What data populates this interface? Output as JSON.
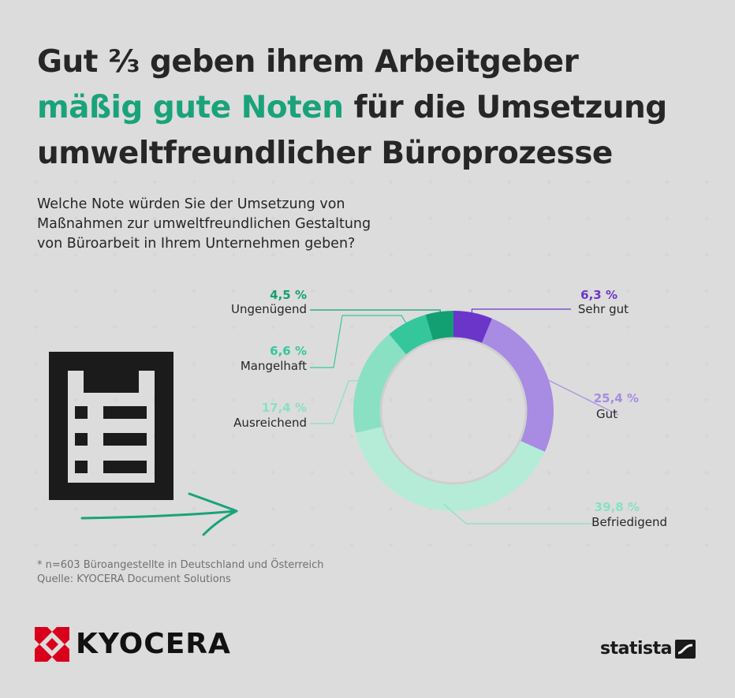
{
  "title": {
    "line1": "Gut ⅔ geben ihrem Arbeitgeber",
    "line2_highlight": "mäßig gute Noten",
    "line2_rest": " für die Umsetzung",
    "line3": "umweltfreundlicher Büroprozesse"
  },
  "subtitle": {
    "line1": "Welche Note würden Sie der Umsetzung von",
    "line2": "Maßnahmen zur umweltfreundlichen Gestaltung",
    "line3": "von Büroarbeit in Ihrem Unternehmen geben?"
  },
  "chart_data": {
    "type": "pie",
    "donut": true,
    "slices": [
      {
        "label": "Sehr gut",
        "value": 6.3,
        "value_label": "6,3 %",
        "color": "#6b35c9"
      },
      {
        "label": "Gut",
        "value": 25.4,
        "value_label": "25,4 %",
        "color": "#a88be3"
      },
      {
        "label": "Befriedigend",
        "value": 39.8,
        "value_label": "39,8 %",
        "color": "#b4ecd8"
      },
      {
        "label": "Ausreichend",
        "value": 17.4,
        "value_label": "17,4 %",
        "color": "#8ae0c2"
      },
      {
        "label": "Mangelhaft",
        "value": 6.6,
        "value_label": "6,6 %",
        "color": "#35c79c"
      },
      {
        "label": "Ungenügend",
        "value": 4.5,
        "value_label": "4,5 %",
        "color": "#12a072"
      }
    ],
    "label_colors": {
      "Sehr gut": "#6b35c9",
      "Gut": "#a88be3",
      "Befriedigend": "#8ae0c2",
      "Ausreichend": "#8ae0c2",
      "Mangelhaft": "#35c79c",
      "Ungenügend": "#12a072"
    }
  },
  "footnote": {
    "line1": "* n=603 Büroangestellte in Deutschland und Österreich",
    "line2": "Quelle: KYOCERA Document Solutions"
  },
  "logos": {
    "kyocera": "KYOCERA",
    "statista": "statista"
  },
  "icons": {
    "clipboard": "clipboard-icon",
    "arrow": "arrow-icon"
  },
  "colors": {
    "highlight": "#1aa37a",
    "kyocera_red": "#d9001b",
    "background": "#f1f1f1"
  }
}
